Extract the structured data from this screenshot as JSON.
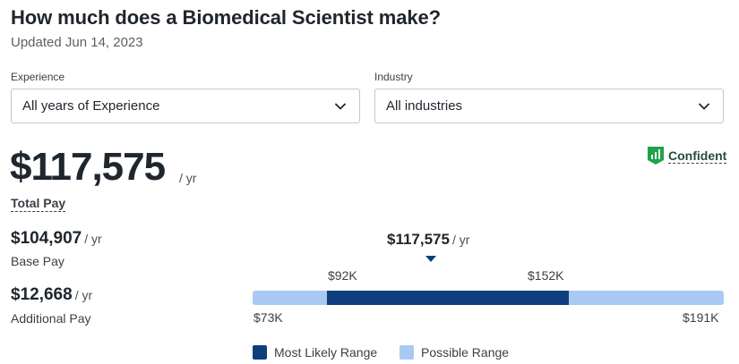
{
  "header": {
    "title": "How much does a Biomedical Scientist make?",
    "updated": "Updated Jun 14, 2023"
  },
  "filters": {
    "experience": {
      "label": "Experience",
      "value": "All years of Experience"
    },
    "industry": {
      "label": "Industry",
      "value": "All industries"
    }
  },
  "total": {
    "amount": "$117,575",
    "per": "/ yr",
    "label": "Total Pay"
  },
  "confidence": {
    "label": "Confident",
    "icon": "confidence-bars-icon",
    "color": "#1fa34a"
  },
  "base_pay": {
    "amount": "$104,907",
    "per": "/ yr",
    "label": "Base Pay"
  },
  "additional_pay": {
    "amount": "$12,668",
    "per": "/ yr",
    "label": "Additional Pay"
  },
  "range": {
    "median": "$117,575",
    "median_per": "/ yr",
    "likely_low": "$92K",
    "likely_high": "$152K",
    "possible_low": "$73K",
    "possible_high": "$191K",
    "likely_color": "#0e3e7e",
    "possible_color": "#a9c9f2"
  },
  "legend": {
    "likely": "Most Likely Range",
    "possible": "Possible Range"
  }
}
